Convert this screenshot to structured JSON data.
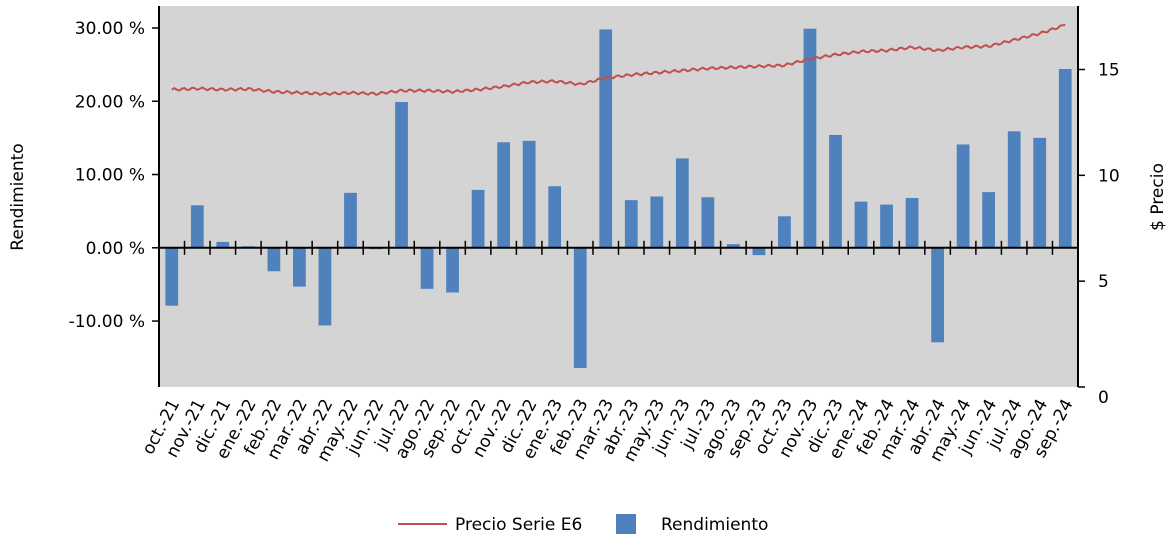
{
  "chart_data": {
    "type": "bar+line",
    "title": "",
    "categories": [
      "oct.-21",
      "nov.-21",
      "dic.-21",
      "ene.-22",
      "feb.-22",
      "mar.-22",
      "abr.-22",
      "may.-22",
      "jun.-22",
      "jul.-22",
      "ago.-22",
      "sep.-22",
      "oct.-22",
      "nov.-22",
      "dic.-22",
      "ene.-23",
      "feb.-23",
      "mar.-23",
      "abr.-23",
      "may.-23",
      "jun.-23",
      "jul.-23",
      "ago.-23",
      "sep.-23",
      "oct.-23",
      "nov.-23",
      "dic.-23",
      "ene.-24",
      "feb.-24",
      "mar.-24",
      "abr.-24",
      "may.-24",
      "jun.-24",
      "jul.-24",
      "ago.-24",
      "sep.-24"
    ],
    "series": [
      {
        "name": "Rendimiento",
        "kind": "bar",
        "axis": "left",
        "color": "#4f81bd",
        "values": [
          -7.9,
          5.8,
          0.8,
          0.2,
          -3.2,
          -5.3,
          -10.6,
          7.5,
          -0.2,
          19.9,
          -5.6,
          -6.1,
          7.9,
          14.4,
          14.6,
          8.4,
          -16.4,
          29.8,
          6.5,
          7.0,
          12.2,
          6.9,
          0.5,
          -1.0,
          4.3,
          29.9,
          15.4,
          6.3,
          5.9,
          6.8,
          -12.9,
          14.1,
          7.6,
          15.9,
          15.0,
          24.4
        ]
      },
      {
        "name": "Precio Serie E6",
        "kind": "line",
        "axis": "right",
        "color": "#c0504d",
        "values": [
          14.05,
          14.1,
          14.05,
          14.08,
          13.95,
          13.9,
          13.85,
          13.9,
          13.85,
          14.0,
          14.0,
          13.95,
          14.05,
          14.2,
          14.4,
          14.45,
          14.3,
          14.6,
          14.75,
          14.85,
          14.95,
          15.05,
          15.1,
          15.15,
          15.2,
          15.5,
          15.7,
          15.85,
          15.9,
          16.05,
          15.9,
          16.05,
          16.1,
          16.4,
          16.7,
          17.1
        ]
      }
    ],
    "y_left": {
      "label": "Rendimiento",
      "ylim": [
        -19,
        33
      ],
      "ticks": [
        -10,
        0,
        10,
        20,
        30
      ],
      "tick_labels": [
        "-10.00 %",
        "0.00 %",
        "10.00 %",
        "20.00 %",
        "30.00 %"
      ]
    },
    "y_right": {
      "label": "$ Precio",
      "ylim": [
        0,
        18
      ],
      "ticks": [
        0,
        5,
        10,
        15
      ],
      "tick_labels": [
        "0",
        "5",
        "10",
        "15"
      ]
    },
    "grid": false,
    "legend_position": "bottom-center",
    "plot_background": "#d4d4d4",
    "legend": [
      {
        "label": "Precio Serie E6",
        "kind": "line",
        "color": "#c0504d"
      },
      {
        "label": "Rendimiento",
        "kind": "bar",
        "color": "#4f81bd"
      }
    ]
  }
}
